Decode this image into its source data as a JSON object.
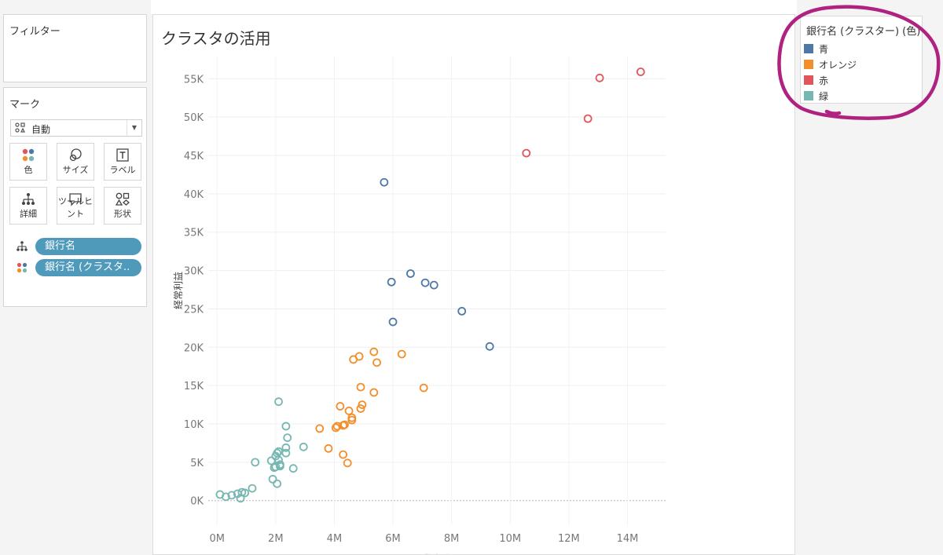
{
  "filters": {
    "title": "フィルター"
  },
  "marks": {
    "title": "マーク",
    "mark_type": "自動",
    "buttons": [
      {
        "label": "色",
        "icon": "color-icon"
      },
      {
        "label": "サイズ",
        "icon": "size-icon"
      },
      {
        "label": "ラベル",
        "icon": "label-icon"
      },
      {
        "label": "詳細",
        "icon": "detail-icon"
      },
      {
        "label": "ツールヒント",
        "icon": "tooltip-icon"
      },
      {
        "label": "形状",
        "icon": "shape-icon"
      }
    ],
    "pills": [
      {
        "label": "銀行名",
        "icon": "detail-icon"
      },
      {
        "label": "銀行名 (クラスタ..",
        "icon": "color-icon"
      }
    ]
  },
  "legend": {
    "title": "銀行名 (クラスター) (色)",
    "items": [
      {
        "label": "青",
        "color": "#4e79a7"
      },
      {
        "label": "オレンジ",
        "color": "#f28e2b"
      },
      {
        "label": "赤",
        "color": "#e15759"
      },
      {
        "label": "緑",
        "color": "#76b7b2"
      }
    ]
  },
  "annotation": {
    "color": "#b0227f"
  },
  "chart_data": {
    "type": "scatter",
    "title": "クラスタの活用",
    "xlabel": "貸出金",
    "ylabel": "経常利益",
    "xlim": [
      -0.3,
      15.3
    ],
    "ylim": [
      -3.2,
      58
    ],
    "xticks": [
      0,
      2,
      4,
      6,
      8,
      10,
      12,
      14
    ],
    "xtick_labels": [
      "0M",
      "2M",
      "4M",
      "6M",
      "8M",
      "10M",
      "12M",
      "14M"
    ],
    "yticks": [
      0,
      5,
      10,
      15,
      20,
      25,
      30,
      35,
      40,
      45,
      50,
      55
    ],
    "ytick_labels": [
      "0K",
      "5K",
      "10K",
      "15K",
      "20K",
      "25K",
      "30K",
      "35K",
      "40K",
      "45K",
      "50K",
      "55K"
    ],
    "grid": true,
    "marker": "open-circle",
    "series": [
      {
        "name": "青",
        "color": "#4e79a7",
        "points": [
          [
            5.7,
            41.5
          ],
          [
            5.95,
            28.5
          ],
          [
            6.6,
            29.6
          ],
          [
            7.1,
            28.4
          ],
          [
            7.4,
            28.1
          ],
          [
            6.0,
            23.3
          ],
          [
            8.35,
            24.7
          ],
          [
            9.3,
            20.1
          ]
        ]
      },
      {
        "name": "オレンジ",
        "color": "#f28e2b",
        "points": [
          [
            4.65,
            18.4
          ],
          [
            4.85,
            18.8
          ],
          [
            5.35,
            19.4
          ],
          [
            5.45,
            18.0
          ],
          [
            6.3,
            19.1
          ],
          [
            4.9,
            14.8
          ],
          [
            5.35,
            14.1
          ],
          [
            7.05,
            14.7
          ],
          [
            4.2,
            12.3
          ],
          [
            4.9,
            12.0
          ],
          [
            4.95,
            12.5
          ],
          [
            4.5,
            11.7
          ],
          [
            4.6,
            10.8
          ],
          [
            4.6,
            10.5
          ],
          [
            3.5,
            9.4
          ],
          [
            4.05,
            9.5
          ],
          [
            4.1,
            9.7
          ],
          [
            4.3,
            9.8
          ],
          [
            4.35,
            9.9
          ],
          [
            3.8,
            6.8
          ],
          [
            4.3,
            6.0
          ],
          [
            4.45,
            4.9
          ]
        ]
      },
      {
        "name": "赤",
        "color": "#e15759",
        "points": [
          [
            14.45,
            55.9
          ],
          [
            13.05,
            55.1
          ],
          [
            12.65,
            49.8
          ],
          [
            10.55,
            45.3
          ]
        ]
      },
      {
        "name": "緑",
        "color": "#76b7b2",
        "points": [
          [
            2.1,
            12.9
          ],
          [
            2.35,
            9.7
          ],
          [
            2.4,
            8.2
          ],
          [
            2.95,
            7.0
          ],
          [
            2.35,
            6.9
          ],
          [
            2.05,
            6.2
          ],
          [
            2.1,
            6.4
          ],
          [
            2.35,
            6.2
          ],
          [
            2.0,
            5.8
          ],
          [
            2.1,
            5.3
          ],
          [
            1.85,
            5.2
          ],
          [
            1.3,
            5.0
          ],
          [
            2.15,
            4.7
          ],
          [
            2.15,
            4.5
          ],
          [
            1.95,
            4.3
          ],
          [
            2.0,
            4.4
          ],
          [
            2.6,
            4.2
          ],
          [
            1.9,
            2.8
          ],
          [
            2.05,
            2.2
          ],
          [
            0.1,
            0.8
          ],
          [
            0.3,
            0.5
          ],
          [
            0.5,
            0.7
          ],
          [
            0.7,
            0.9
          ],
          [
            0.85,
            1.1
          ],
          [
            0.95,
            1.0
          ],
          [
            1.2,
            1.6
          ],
          [
            0.8,
            0.3
          ]
        ]
      }
    ]
  }
}
